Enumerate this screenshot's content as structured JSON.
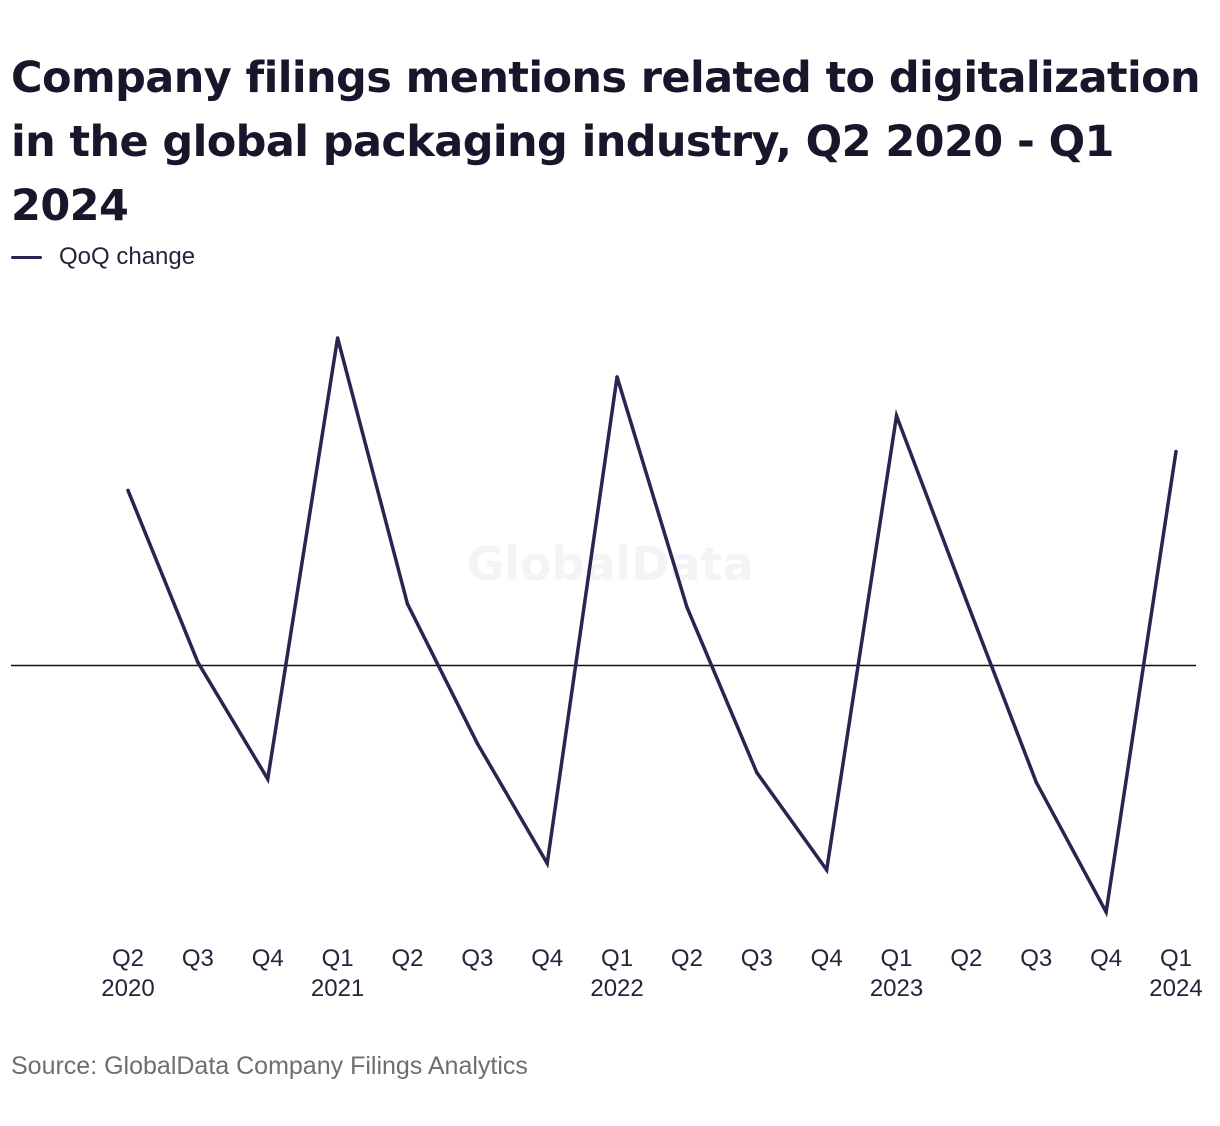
{
  "title": "Company filings mentions related to digitalization in the global packaging industry, Q2 2020 - Q1 2024",
  "watermark": "GlobalData",
  "source": "Source: GlobalData Company Filings Analytics",
  "colors": {
    "series": "#2d2250",
    "baseline": "#111111",
    "watermark": "#f4f4f6"
  },
  "chart_data": {
    "type": "line",
    "title": "Company filings mentions related to digitalization in the global packaging industry, Q2 2020 - Q1 2024",
    "xlabel": "",
    "ylabel": "",
    "categories": [
      [
        "Q2",
        "2020"
      ],
      [
        "Q3",
        ""
      ],
      [
        "Q4",
        ""
      ],
      [
        "Q1",
        "2021"
      ],
      [
        "Q2",
        ""
      ],
      [
        "Q3",
        ""
      ],
      [
        "Q4",
        ""
      ],
      [
        "Q1",
        "2022"
      ],
      [
        "Q2",
        ""
      ],
      [
        "Q3",
        ""
      ],
      [
        "Q4",
        ""
      ],
      [
        "Q1",
        "2023"
      ],
      [
        "Q2",
        ""
      ],
      [
        "Q3",
        ""
      ],
      [
        "Q4",
        ""
      ],
      [
        "Q1",
        "2024"
      ]
    ],
    "series": [
      {
        "name": "QoQ change",
        "values": [
          54,
          1,
          -35,
          101,
          19,
          -24,
          -61,
          89,
          18,
          -33,
          -63,
          77,
          20,
          -36,
          -76,
          66
        ]
      }
    ],
    "ylim": [
      -80,
      105
    ],
    "baseline": 0,
    "grid": false,
    "y_axis_labels": false,
    "legend": "top-left"
  }
}
